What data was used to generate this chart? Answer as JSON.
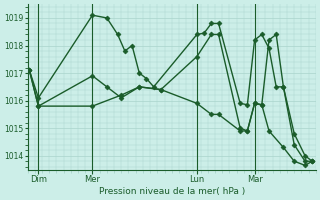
{
  "background_color": "#cceee8",
  "grid_color": "#aad4cc",
  "line_color": "#1a5c2a",
  "ylabel_text": "Pression niveau de la mer( hPa )",
  "ylim": [
    1013.5,
    1019.5
  ],
  "yticks": [
    1014,
    1015,
    1016,
    1017,
    1018,
    1019
  ],
  "xlim": [
    0,
    80
  ],
  "xtick_labels": [
    "Dim",
    "Mer",
    "Lun",
    "Mar"
  ],
  "xtick_positions": [
    3,
    18,
    47,
    63
  ],
  "day_vlines": [
    3,
    18,
    47,
    63
  ],
  "series": [
    {
      "x": [
        0.5,
        3,
        18,
        22,
        25,
        27,
        29,
        31,
        33,
        35,
        47,
        49,
        51,
        53,
        59,
        61,
        63,
        65,
        67,
        69,
        71,
        74,
        77,
        79
      ],
      "y": [
        1017.1,
        1016.1,
        1019.1,
        1019.0,
        1018.4,
        1017.8,
        1018.0,
        1017.0,
        1016.8,
        1016.5,
        1018.4,
        1018.45,
        1018.8,
        1018.8,
        1015.9,
        1015.85,
        1018.2,
        1018.4,
        1017.9,
        1016.5,
        1016.5,
        1014.4,
        1013.8,
        1013.8
      ],
      "marker": "D",
      "markersize": 2.5,
      "linewidth": 1.0
    },
    {
      "x": [
        0.5,
        3,
        18,
        22,
        26,
        31,
        37,
        47,
        51,
        53,
        59,
        61,
        63,
        65,
        67,
        69,
        71,
        74,
        77,
        79
      ],
      "y": [
        1017.1,
        1015.8,
        1016.9,
        1016.5,
        1016.1,
        1016.5,
        1016.4,
        1017.6,
        1018.4,
        1018.4,
        1015.0,
        1014.9,
        1015.9,
        1015.85,
        1018.2,
        1018.4,
        1016.5,
        1014.8,
        1014.0,
        1013.8
      ],
      "marker": "D",
      "markersize": 2.5,
      "linewidth": 1.0
    },
    {
      "x": [
        0.5,
        3,
        18,
        26,
        31,
        37,
        47,
        51,
        53,
        59,
        61,
        63,
        65,
        67,
        71,
        74,
        77,
        79
      ],
      "y": [
        1017.1,
        1015.8,
        1015.8,
        1016.2,
        1016.5,
        1016.4,
        1015.9,
        1015.5,
        1015.5,
        1014.9,
        1014.9,
        1015.9,
        1015.85,
        1014.9,
        1014.3,
        1013.8,
        1013.65,
        1013.8
      ],
      "marker": "D",
      "markersize": 2.5,
      "linewidth": 1.0
    }
  ]
}
